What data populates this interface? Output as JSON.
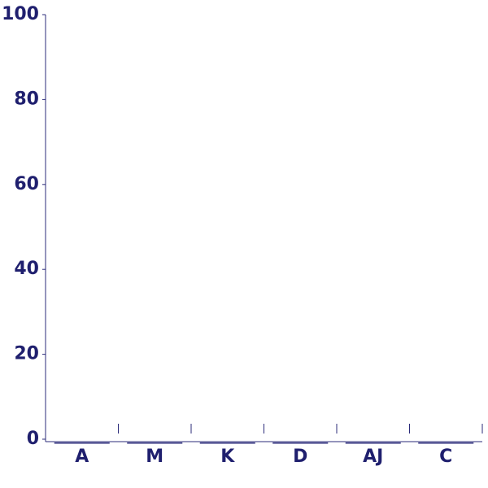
{
  "colors": {
    "axis": "#2b2b7a",
    "text": "#1f1f6e",
    "bar": "#2b2b7a",
    "background": "#ffffff"
  },
  "chart_data": {
    "type": "bar",
    "title": "",
    "xlabel": "",
    "ylabel": "",
    "categories": [
      "A",
      "M",
      "K",
      "D",
      "AJ",
      "C"
    ],
    "series": [
      {
        "values": [
          0.2,
          0.2,
          0.2,
          0.2,
          0.2,
          0.2
        ]
      }
    ],
    "ylim": [
      0,
      100
    ],
    "yticks": [
      0,
      20,
      40,
      60,
      80,
      100
    ],
    "grid": false,
    "legend": "none"
  }
}
